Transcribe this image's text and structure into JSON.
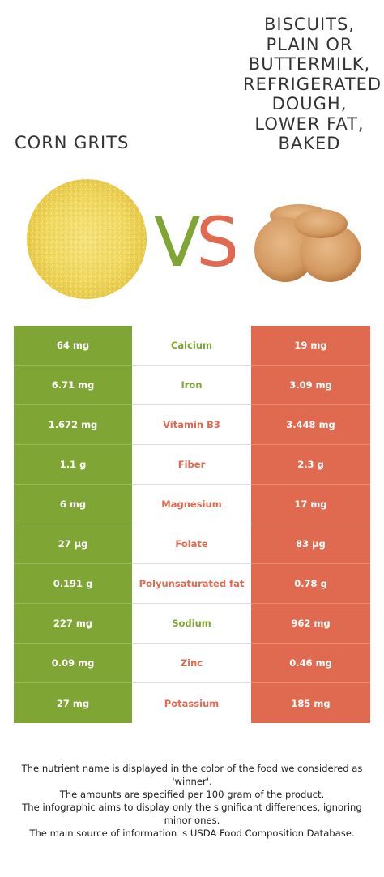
{
  "foods": {
    "left": {
      "name": "CORN GRITS",
      "image_icon": "corn-grits-image",
      "color": "#7fa534"
    },
    "right": {
      "name": "BISCUITS,\nPLAIN OR\nBUTTERMILK,\nREFRIGERATED\nDOUGH,\nLOWER FAT,\nBAKED",
      "image_icon": "biscuits-image",
      "color": "#e06a4f"
    }
  },
  "vs": {
    "v": "V",
    "s": "S",
    "v_color": "#7fa534",
    "s_color": "#e06a4f"
  },
  "nutrients": [
    {
      "name": "Calcium",
      "left": "64 mg",
      "right": "19 mg",
      "winner": "left"
    },
    {
      "name": "Iron",
      "left": "6.71 mg",
      "right": "3.09 mg",
      "winner": "left"
    },
    {
      "name": "Vitamin B3",
      "left": "1.672 mg",
      "right": "3.448 mg",
      "winner": "right"
    },
    {
      "name": "Fiber",
      "left": "1.1 g",
      "right": "2.3 g",
      "winner": "right"
    },
    {
      "name": "Magnesium",
      "left": "6 mg",
      "right": "17 mg",
      "winner": "right"
    },
    {
      "name": "Folate",
      "left": "27 µg",
      "right": "83 µg",
      "winner": "right"
    },
    {
      "name": "Polyunsaturated fat",
      "left": "0.191 g",
      "right": "0.78 g",
      "winner": "right"
    },
    {
      "name": "Sodium",
      "left": "227 mg",
      "right": "962 mg",
      "winner": "left"
    },
    {
      "name": "Zinc",
      "left": "0.09 mg",
      "right": "0.46 mg",
      "winner": "right"
    },
    {
      "name": "Potassium",
      "left": "27 mg",
      "right": "185 mg",
      "winner": "right"
    }
  ],
  "footer": {
    "line1": "The nutrient name is displayed in the color of the food we considered as 'winner'.",
    "line2": "The amounts are specified per 100 gram of the product.",
    "line3": "The infographic aims to display only the significant differences, ignoring minor ones.",
    "line4": "The main source of information is USDA Food Composition Database."
  }
}
